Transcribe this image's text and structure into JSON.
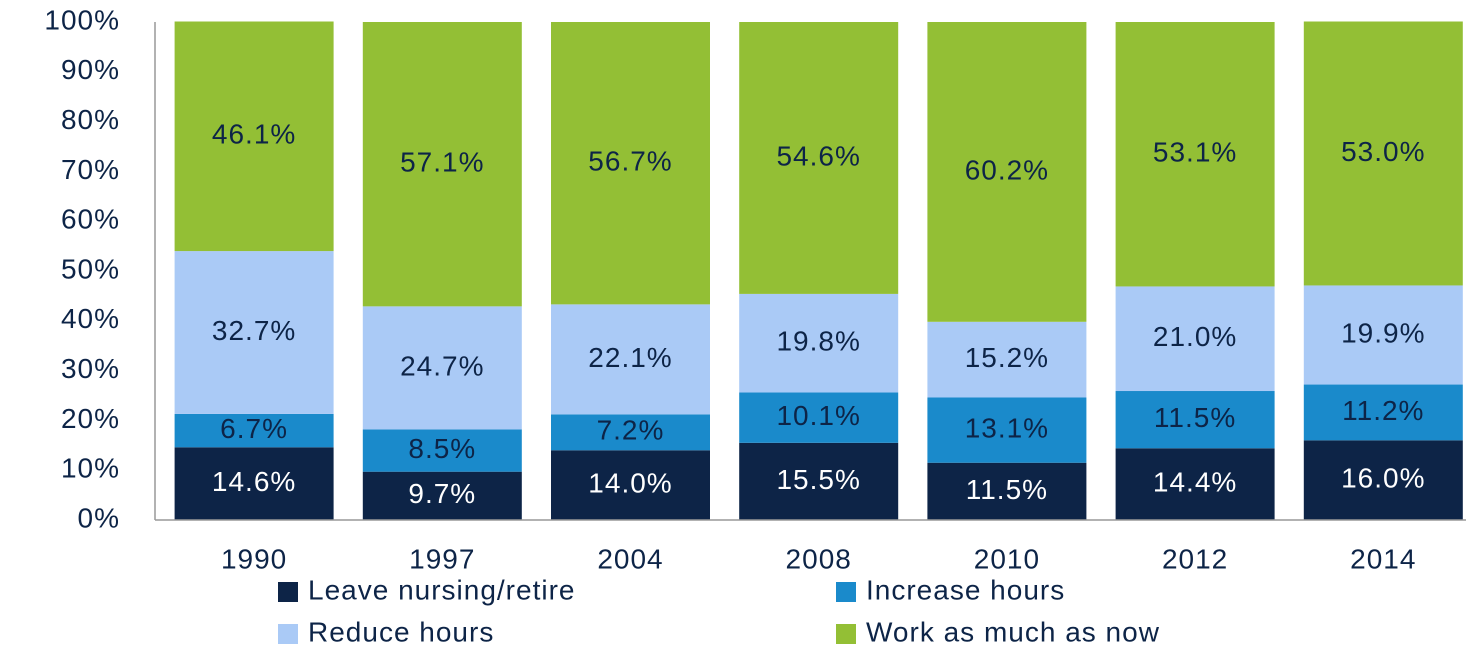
{
  "chart_data": {
    "type": "stacked_bar",
    "categories": [
      "1990",
      "1997",
      "2004",
      "2008",
      "2010",
      "2012",
      "2014"
    ],
    "series": [
      {
        "name": "Leave nursing/retire",
        "color": "#0d2447",
        "values": [
          14.6,
          9.7,
          14.0,
          15.5,
          11.5,
          14.4,
          16.0
        ],
        "value_labels": [
          "14.6%",
          "9.7%",
          "14.0%",
          "15.5%",
          "11.5%",
          "14.4%",
          "16.0%"
        ]
      },
      {
        "name": "Increase hours",
        "color": "#1a8acb",
        "values": [
          6.7,
          8.5,
          7.2,
          10.1,
          13.1,
          11.5,
          11.2
        ],
        "value_labels": [
          "6.7%",
          "8.5%",
          "7.2%",
          "10.1%",
          "13.1%",
          "11.5%",
          "11.2%"
        ]
      },
      {
        "name": "Reduce hours",
        "color": "#aacaf6",
        "values": [
          32.7,
          24.7,
          22.1,
          19.8,
          15.2,
          21.0,
          19.9
        ],
        "value_labels": [
          "32.7%",
          "24.7%",
          "22.1%",
          "19.8%",
          "15.2%",
          "21.0%",
          "19.9%"
        ]
      },
      {
        "name": "Work as much as now",
        "color": "#93bf35",
        "values": [
          46.1,
          57.1,
          56.7,
          54.6,
          60.2,
          53.1,
          53.0
        ],
        "value_labels": [
          "46.1%",
          "57.1%",
          "56.7%",
          "54.6%",
          "60.2%",
          "53.1%",
          "53.0%"
        ]
      }
    ],
    "ylim": [
      0,
      100
    ],
    "yticks": [
      {
        "value": 0,
        "label": "0%"
      },
      {
        "value": 10,
        "label": "10%"
      },
      {
        "value": 20,
        "label": "20%"
      },
      {
        "value": 30,
        "label": "30%"
      },
      {
        "value": 40,
        "label": "40%"
      },
      {
        "value": 50,
        "label": "50%"
      },
      {
        "value": 60,
        "label": "60%"
      },
      {
        "value": 70,
        "label": "70%"
      },
      {
        "value": 80,
        "label": "80%"
      },
      {
        "value": 90,
        "label": "90%"
      },
      {
        "value": 100,
        "label": "100%"
      }
    ],
    "legend": "bottom"
  }
}
